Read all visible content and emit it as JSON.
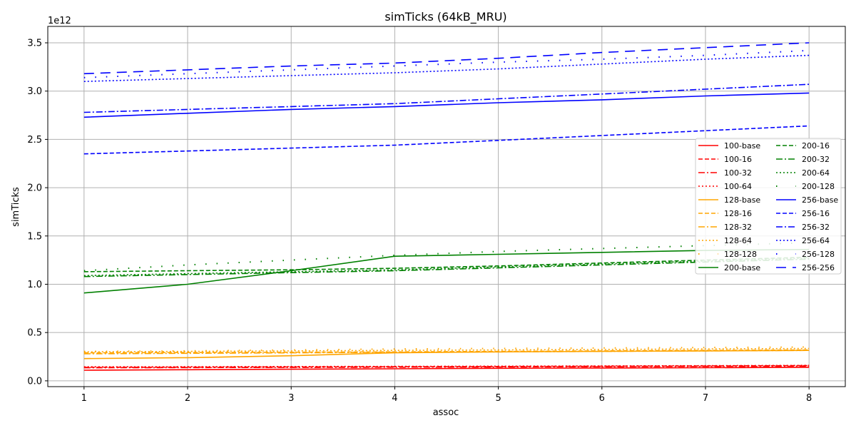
{
  "chart_data": {
    "type": "line",
    "title": "simTicks (64kB_MRU)",
    "xlabel": "assoc",
    "ylabel": "simTicks",
    "offset_label": "1e12",
    "x": [
      1,
      2,
      3,
      4,
      5,
      6,
      7,
      8
    ],
    "xlim": [
      0.65,
      8.35
    ],
    "ylim": [
      -0.06,
      3.67
    ],
    "x_ticks": [
      "1",
      "2",
      "3",
      "4",
      "5",
      "6",
      "7",
      "8"
    ],
    "y_ticks": [
      "0.0",
      "0.5",
      "1.0",
      "1.5",
      "2.0",
      "2.5",
      "3.0",
      "3.5"
    ],
    "grid": true,
    "legend_position": "center-right",
    "series": [
      {
        "name": "100-base",
        "color": "#ff0000",
        "dash": "solid",
        "values": [
          0.11,
          0.115,
          0.12,
          0.125,
          0.13,
          0.133,
          0.136,
          0.14
        ]
      },
      {
        "name": "100-16",
        "color": "#ff0000",
        "dash": "dashed",
        "values": [
          0.14,
          0.142,
          0.144,
          0.146,
          0.148,
          0.151,
          0.154,
          0.158
        ]
      },
      {
        "name": "100-32",
        "color": "#ff0000",
        "dash": "dashdot",
        "values": [
          0.135,
          0.137,
          0.139,
          0.141,
          0.143,
          0.146,
          0.149,
          0.152
        ]
      },
      {
        "name": "100-64",
        "color": "#ff0000",
        "dash": "dotted",
        "values": [
          0.145,
          0.146,
          0.148,
          0.15,
          0.152,
          0.154,
          0.157,
          0.16
        ]
      },
      {
        "name": "128-base",
        "color": "#ffa500",
        "dash": "solid",
        "values": [
          0.23,
          0.24,
          0.26,
          0.29,
          0.3,
          0.305,
          0.31,
          0.315
        ]
      },
      {
        "name": "128-16",
        "color": "#ffa500",
        "dash": "dashed",
        "values": [
          0.29,
          0.293,
          0.296,
          0.3,
          0.305,
          0.31,
          0.315,
          0.32
        ]
      },
      {
        "name": "128-32",
        "color": "#ffa500",
        "dash": "dashdot",
        "values": [
          0.28,
          0.285,
          0.29,
          0.295,
          0.3,
          0.305,
          0.31,
          0.315
        ]
      },
      {
        "name": "128-64",
        "color": "#ffa500",
        "dash": "dotted",
        "values": [
          0.3,
          0.305,
          0.31,
          0.315,
          0.32,
          0.325,
          0.33,
          0.335
        ]
      },
      {
        "name": "128-128",
        "color": "#ffa500",
        "dash": "sparse",
        "values": [
          0.305,
          0.31,
          0.32,
          0.33,
          0.335,
          0.34,
          0.345,
          0.35
        ]
      },
      {
        "name": "200-base",
        "color": "#008000",
        "dash": "solid",
        "values": [
          0.91,
          1.0,
          1.14,
          1.29,
          1.31,
          1.33,
          1.35,
          1.36
        ]
      },
      {
        "name": "200-16",
        "color": "#008000",
        "dash": "dashed",
        "values": [
          1.13,
          1.14,
          1.15,
          1.165,
          1.19,
          1.22,
          1.25,
          1.28
        ]
      },
      {
        "name": "200-32",
        "color": "#008000",
        "dash": "dashdot",
        "values": [
          1.08,
          1.1,
          1.12,
          1.14,
          1.17,
          1.2,
          1.23,
          1.26
        ]
      },
      {
        "name": "200-64",
        "color": "#008000",
        "dash": "dotted",
        "values": [
          1.09,
          1.11,
          1.13,
          1.15,
          1.18,
          1.21,
          1.24,
          1.27
        ]
      },
      {
        "name": "200-128",
        "color": "#008000",
        "dash": "sparse",
        "values": [
          1.14,
          1.2,
          1.25,
          1.3,
          1.34,
          1.37,
          1.4,
          1.43
        ]
      },
      {
        "name": "256-base",
        "color": "#0000ff",
        "dash": "solid",
        "values": [
          2.73,
          2.77,
          2.81,
          2.84,
          2.88,
          2.91,
          2.95,
          2.98
        ]
      },
      {
        "name": "256-16",
        "color": "#0000ff",
        "dash": "dashed",
        "values": [
          2.35,
          2.38,
          2.41,
          2.44,
          2.49,
          2.54,
          2.59,
          2.64
        ]
      },
      {
        "name": "256-32",
        "color": "#0000ff",
        "dash": "dashdot",
        "values": [
          2.78,
          2.81,
          2.84,
          2.87,
          2.92,
          2.97,
          3.02,
          3.07
        ]
      },
      {
        "name": "256-64",
        "color": "#0000ff",
        "dash": "dotted",
        "values": [
          3.1,
          3.13,
          3.16,
          3.19,
          3.23,
          3.28,
          3.33,
          3.37
        ]
      },
      {
        "name": "256-128",
        "color": "#0000ff",
        "dash": "sparse",
        "values": [
          3.14,
          3.18,
          3.22,
          3.26,
          3.3,
          3.33,
          3.37,
          3.42
        ]
      },
      {
        "name": "256-256",
        "color": "#0000ff",
        "dash": "longdash",
        "values": [
          3.18,
          3.22,
          3.26,
          3.29,
          3.34,
          3.4,
          3.45,
          3.5
        ]
      }
    ]
  }
}
